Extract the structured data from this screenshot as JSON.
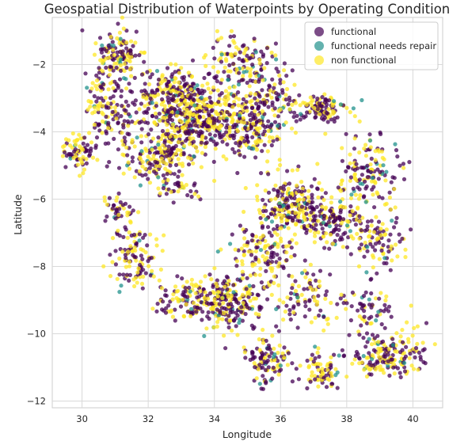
{
  "chart_data": {
    "type": "scatter",
    "title": "Geospatial Distribution of Waterpoints by Operating Condition",
    "xlabel": "Longitude",
    "ylabel": "Latitude",
    "xlim": [
      29.1,
      40.9
    ],
    "ylim": [
      -12.2,
      -0.6
    ],
    "x_ticks": [
      30,
      32,
      34,
      36,
      38,
      40
    ],
    "y_ticks": [
      -2,
      -4,
      -6,
      -8,
      -10,
      -12
    ],
    "grid": true,
    "legend_position": "top-right",
    "series": [
      {
        "name": "functional",
        "color": "#440154"
      },
      {
        "name": "functional needs repair",
        "color": "#21918c"
      },
      {
        "name": "non functional",
        "color": "#fde725"
      }
    ],
    "clusters": [
      {
        "x": 31.1,
        "y": -1.7,
        "sx": 0.32,
        "sy": 0.35,
        "n": 120
      },
      {
        "x": 32.7,
        "y": -2.7,
        "sx": 0.55,
        "sy": 0.35,
        "n": 140
      },
      {
        "x": 33.2,
        "y": -3.6,
        "sx": 0.75,
        "sy": 0.5,
        "n": 420
      },
      {
        "x": 32.3,
        "y": -4.7,
        "sx": 0.6,
        "sy": 0.35,
        "n": 160
      },
      {
        "x": 30.8,
        "y": -3.3,
        "sx": 0.4,
        "sy": 0.65,
        "n": 160
      },
      {
        "x": 29.9,
        "y": -4.6,
        "sx": 0.22,
        "sy": 0.25,
        "n": 70
      },
      {
        "x": 34.8,
        "y": -2.0,
        "sx": 0.55,
        "sy": 0.45,
        "n": 140
      },
      {
        "x": 34.9,
        "y": -3.9,
        "sx": 0.6,
        "sy": 0.45,
        "n": 210
      },
      {
        "x": 35.8,
        "y": -3.1,
        "sx": 0.45,
        "sy": 0.4,
        "n": 100
      },
      {
        "x": 37.3,
        "y": -3.3,
        "sx": 0.35,
        "sy": 0.2,
        "n": 110
      },
      {
        "x": 38.7,
        "y": -5.2,
        "sx": 0.4,
        "sy": 0.5,
        "n": 140
      },
      {
        "x": 36.3,
        "y": -6.2,
        "sx": 0.55,
        "sy": 0.5,
        "n": 250
      },
      {
        "x": 37.6,
        "y": -6.7,
        "sx": 0.45,
        "sy": 0.35,
        "n": 140
      },
      {
        "x": 39.0,
        "y": -7.2,
        "sx": 0.35,
        "sy": 0.5,
        "n": 90
      },
      {
        "x": 31.6,
        "y": -7.7,
        "sx": 0.35,
        "sy": 0.45,
        "n": 120
      },
      {
        "x": 33.3,
        "y": -9.0,
        "sx": 0.5,
        "sy": 0.3,
        "n": 130
      },
      {
        "x": 34.5,
        "y": -9.1,
        "sx": 0.5,
        "sy": 0.4,
        "n": 210
      },
      {
        "x": 35.6,
        "y": -10.8,
        "sx": 0.35,
        "sy": 0.35,
        "n": 110
      },
      {
        "x": 37.2,
        "y": -11.1,
        "sx": 0.3,
        "sy": 0.3,
        "n": 70
      },
      {
        "x": 39.2,
        "y": -10.7,
        "sx": 0.6,
        "sy": 0.35,
        "n": 190
      },
      {
        "x": 38.7,
        "y": -9.3,
        "sx": 0.35,
        "sy": 0.4,
        "n": 60
      },
      {
        "x": 35.4,
        "y": -7.6,
        "sx": 0.5,
        "sy": 0.4,
        "n": 110
      },
      {
        "x": 36.7,
        "y": -8.9,
        "sx": 0.55,
        "sy": 0.45,
        "n": 100
      },
      {
        "x": 31.1,
        "y": -6.3,
        "sx": 0.25,
        "sy": 0.2,
        "n": 40
      },
      {
        "x": 32.9,
        "y": -5.7,
        "sx": 0.3,
        "sy": 0.25,
        "n": 40
      }
    ]
  }
}
